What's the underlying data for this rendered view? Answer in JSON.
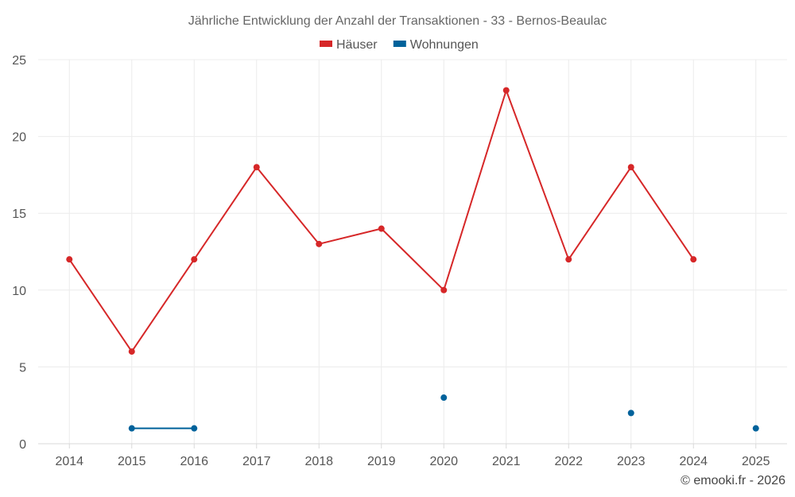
{
  "chart_data": {
    "type": "line",
    "title": "Jährliche Entwicklung der Anzahl der Transaktionen - 33 - Bernos-Beaulac",
    "categories": [
      "2014",
      "2015",
      "2016",
      "2017",
      "2018",
      "2019",
      "2020",
      "2021",
      "2022",
      "2023",
      "2024",
      "2025"
    ],
    "ylim": [
      0,
      25
    ],
    "yticks": [
      0,
      5,
      10,
      15,
      20,
      25
    ],
    "grid": true,
    "legend_position": "top-center",
    "series": [
      {
        "name": "Häuser",
        "color": "#d62728",
        "values": [
          12,
          6,
          12,
          18,
          13,
          14,
          10,
          23,
          12,
          18,
          12,
          null
        ]
      },
      {
        "name": "Wohnungen",
        "color": "#00629b",
        "values": [
          null,
          1,
          1,
          null,
          null,
          null,
          3,
          null,
          null,
          2,
          null,
          1
        ]
      }
    ]
  },
  "credit": "© emooki.fr - 2026"
}
